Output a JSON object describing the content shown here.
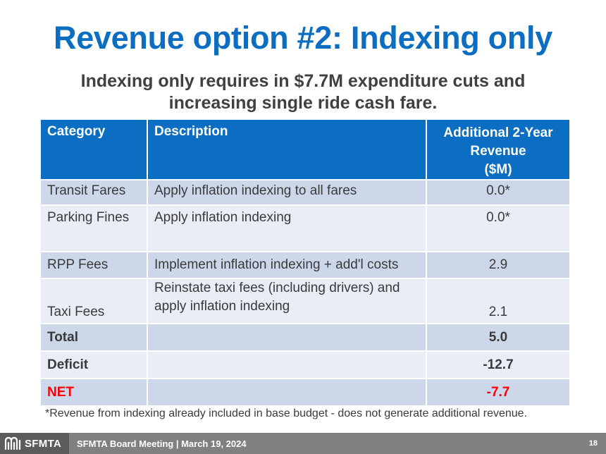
{
  "title": "Revenue option #2: Indexing only",
  "subtitle_line1": "Indexing only requires in $7.7M expenditure cuts and",
  "subtitle_line2": "increasing single ride cash fare.",
  "table": {
    "headers": {
      "category": "Category",
      "description": "Description",
      "revenue_line1": "Additional 2-Year",
      "revenue_line2": "Revenue",
      "revenue_line3": "($M)"
    },
    "rows": [
      {
        "category": "Transit Fares",
        "description": "Apply inflation indexing to all fares",
        "value": "0.0*"
      },
      {
        "category": "Parking Fines",
        "description": "Apply inflation indexing",
        "value": "0.0*"
      },
      {
        "category": "RPP Fees",
        "description": "Implement inflation indexing + add'l costs",
        "value": "2.9"
      },
      {
        "category": "Taxi Fees",
        "description_line1": "Reinstate taxi fees (including drivers) and",
        "description_line2": "apply inflation indexing",
        "value": "2.1"
      },
      {
        "category": "Total",
        "description": "",
        "value": "5.0"
      },
      {
        "category": "Deficit",
        "description": "",
        "value": "-12.7"
      },
      {
        "category": "NET",
        "description": "",
        "value": "-7.7"
      }
    ]
  },
  "footnote": "*Revenue from indexing already included in base budget - does not generate additional revenue.",
  "footer": {
    "logo_text": "SFMTA",
    "meeting": "SFMTA Board Meeting | March 19, 2024",
    "page_number": "18"
  },
  "colors": {
    "title_blue": "#0b6ec2",
    "header_blue": "#0b6ec2",
    "net_red": "#ff0000",
    "footer_gray": "#808080"
  }
}
